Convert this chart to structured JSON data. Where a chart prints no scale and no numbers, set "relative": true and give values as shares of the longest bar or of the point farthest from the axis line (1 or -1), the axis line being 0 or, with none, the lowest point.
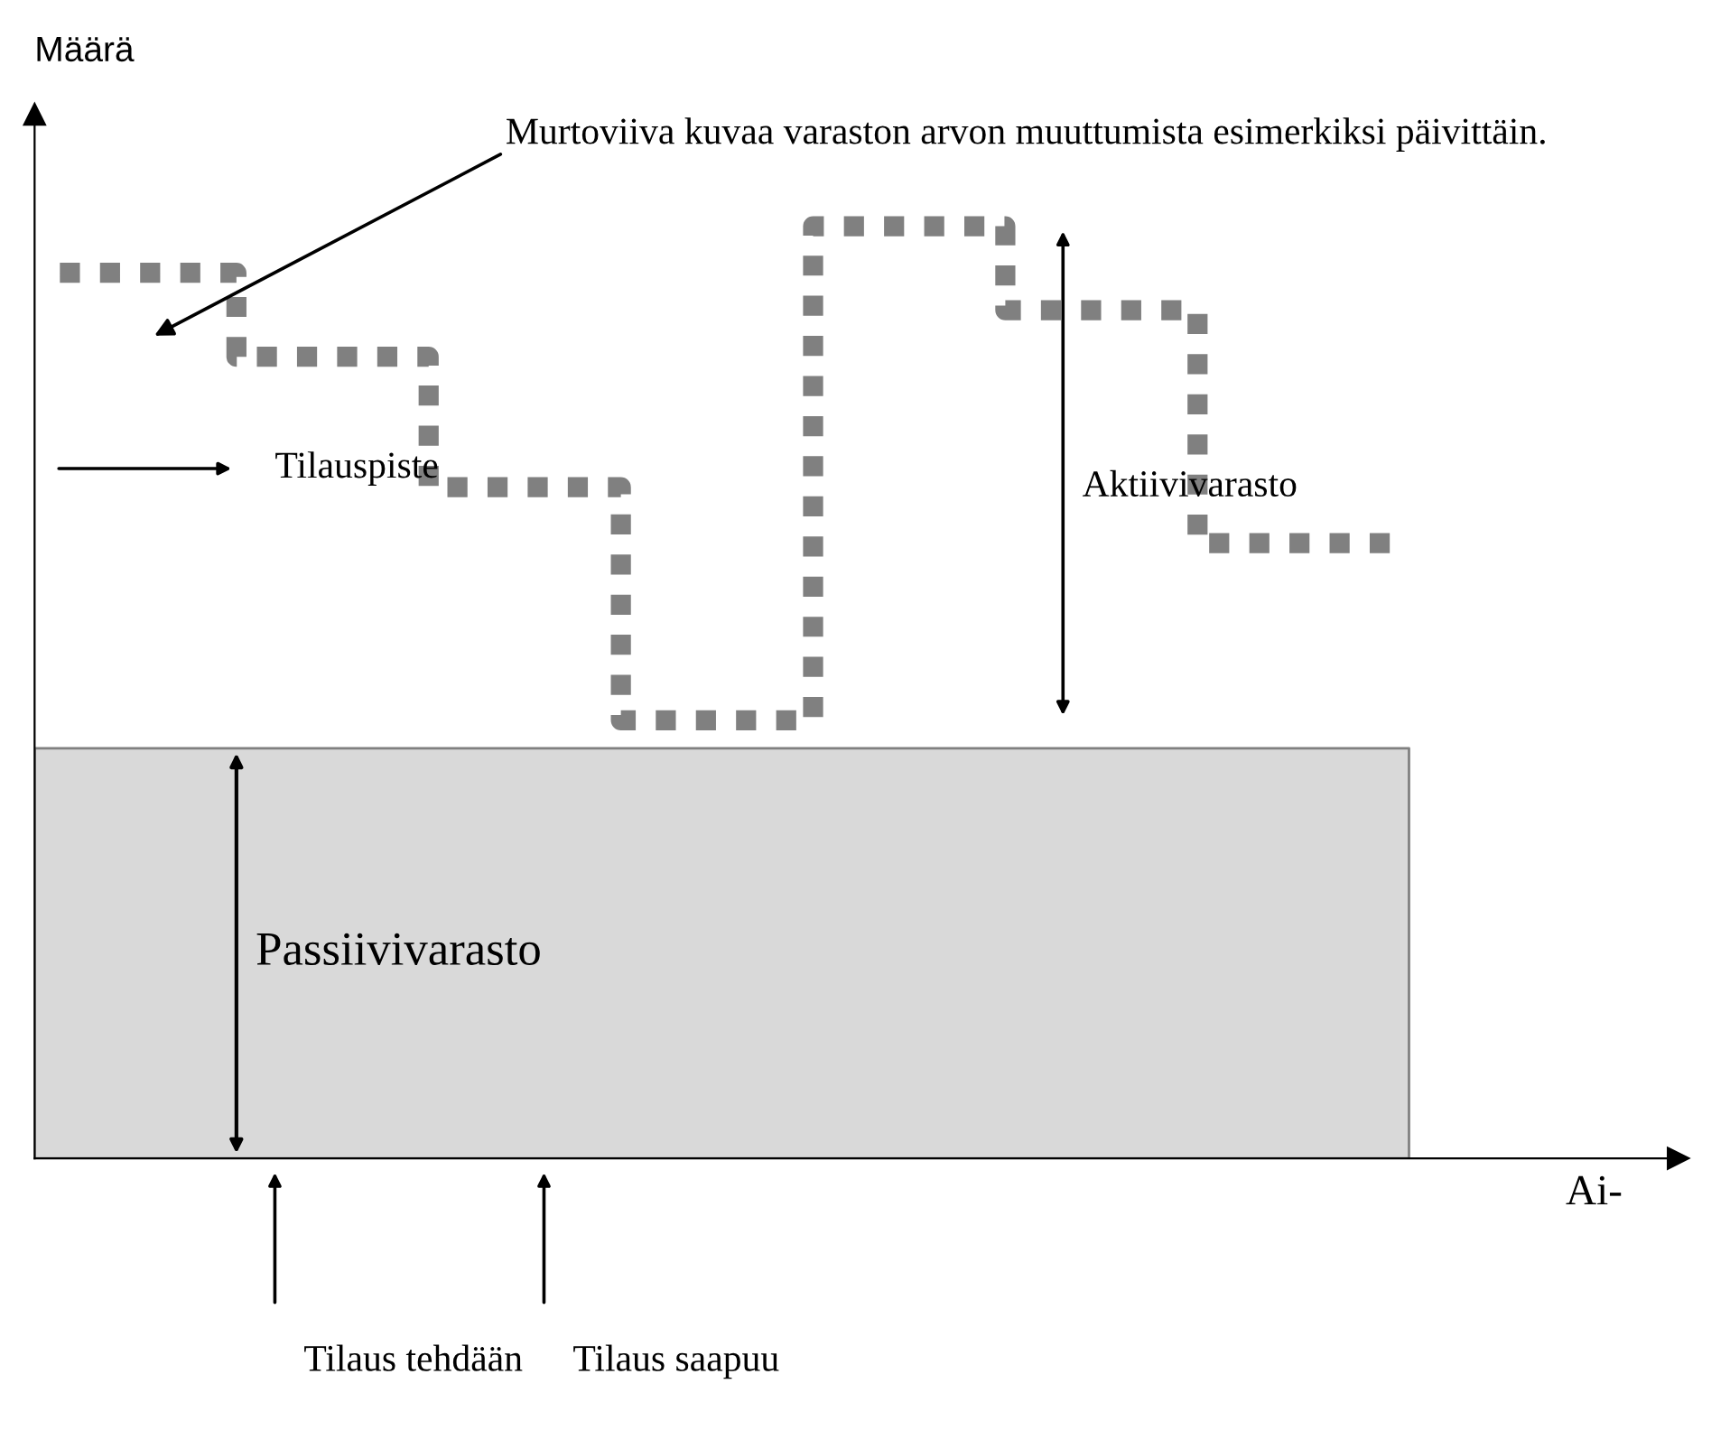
{
  "chart_data": {
    "type": "step",
    "relative": true,
    "ylabel": "Määrä",
    "xlabel": "Ai-",
    "categories": [
      null,
      null,
      null,
      null,
      null,
      null,
      null,
      null
    ],
    "series": [
      {
        "color": "#808080",
        "values": [
          0.95,
          0.86,
          0.72,
          0.47,
          1,
          0.91,
          0.66,
          0.66
        ]
      }
    ],
    "line_style": "dotted",
    "bands": [
      {
        "axis": "y",
        "from": 0,
        "to": 0.44,
        "label": "Passiivivarasto",
        "color": "#d9d9d9"
      }
    ],
    "annotations": [
      "Murtoviiva kuvaa varaston arvon muuttumista esimerkiksi päivittäin.",
      "Tilauspiste",
      "Aktiivivarasto",
      "Tilaus tehdään",
      "Tilaus saapuu"
    ],
    "legend": false
  }
}
